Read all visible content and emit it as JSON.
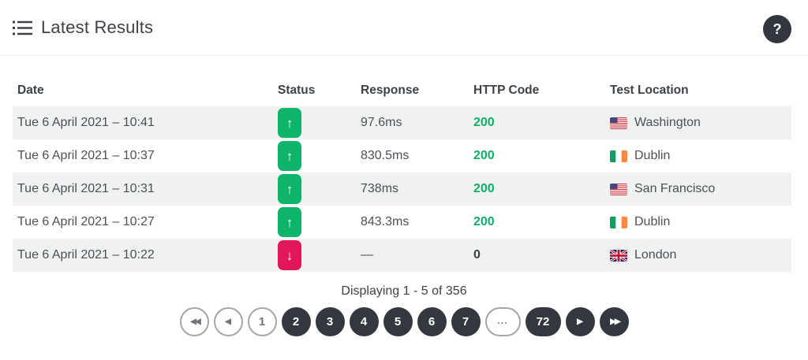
{
  "header": {
    "title": "Latest Results",
    "list_icon": "list-icon",
    "help_icon": "question-mark-icon",
    "help_label": "?"
  },
  "table": {
    "columns": [
      "Date",
      "Status",
      "Response",
      "HTTP Code",
      "Test Location"
    ],
    "up_glyph": "↑",
    "down_glyph": "↓",
    "rows": [
      {
        "date": "Tue 6 April 2021 – 10:41",
        "status": "up",
        "status_icon": "up-arrow-icon",
        "response": "97.6ms",
        "http_code": "200",
        "flag": "us",
        "flag_icon": "us-flag-icon",
        "location": "Washington"
      },
      {
        "date": "Tue 6 April 2021 – 10:37",
        "status": "up",
        "status_icon": "up-arrow-icon",
        "response": "830.5ms",
        "http_code": "200",
        "flag": "ie",
        "flag_icon": "ireland-flag-icon",
        "location": "Dublin"
      },
      {
        "date": "Tue 6 April 2021 – 10:31",
        "status": "up",
        "status_icon": "up-arrow-icon",
        "response": "738ms",
        "http_code": "200",
        "flag": "us",
        "flag_icon": "us-flag-icon",
        "location": "San Francisco"
      },
      {
        "date": "Tue 6 April 2021 – 10:27",
        "status": "up",
        "status_icon": "up-arrow-icon",
        "response": "843.3ms",
        "http_code": "200",
        "flag": "ie",
        "flag_icon": "ireland-flag-icon",
        "location": "Dublin"
      },
      {
        "date": "Tue 6 April 2021 – 10:22",
        "status": "down",
        "status_icon": "down-arrow-icon",
        "response": "—",
        "http_code": "0",
        "flag": "gb",
        "flag_icon": "uk-flag-icon",
        "location": "London"
      }
    ]
  },
  "pagination": {
    "summary": "Displaying 1 - 5 of 356",
    "items": [
      {
        "name": "pagination-first-button",
        "icon": "double-left-arrow-icon",
        "icon_glyph": "◀◀",
        "double": true,
        "style": "outline"
      },
      {
        "name": "pagination-prev-button",
        "icon": "left-arrow-icon",
        "icon_glyph": "◀",
        "double": false,
        "style": "outline"
      },
      {
        "name": "pagination-page-1",
        "label": "1",
        "style": "outline",
        "current": true
      },
      {
        "name": "pagination-page-2",
        "label": "2",
        "style": "dark"
      },
      {
        "name": "pagination-page-3",
        "label": "3",
        "style": "dark"
      },
      {
        "name": "pagination-page-4",
        "label": "4",
        "style": "dark"
      },
      {
        "name": "pagination-page-5",
        "label": "5",
        "style": "dark"
      },
      {
        "name": "pagination-page-6",
        "label": "6",
        "style": "dark"
      },
      {
        "name": "pagination-page-7",
        "label": "7",
        "style": "dark"
      },
      {
        "name": "pagination-ellipsis",
        "label": "...",
        "style": "outline",
        "ellipsis": true,
        "wide": true
      },
      {
        "name": "pagination-page-72",
        "label": "72",
        "style": "dark",
        "wide": true
      },
      {
        "name": "pagination-next-button",
        "icon": "right-arrow-icon",
        "icon_glyph": "▶",
        "double": false,
        "style": "dark"
      },
      {
        "name": "pagination-last-button",
        "icon": "double-right-arrow-icon",
        "icon_glyph": "▶▶",
        "double": true,
        "style": "dark"
      }
    ]
  },
  "colors": {
    "status_up": "#0fb46a",
    "status_down": "#e0175d",
    "http_ok_text": "#0cb068",
    "dark_button": "#33383f",
    "row_stripe": "#f0f1f1",
    "text_dark": "#3d4248"
  }
}
